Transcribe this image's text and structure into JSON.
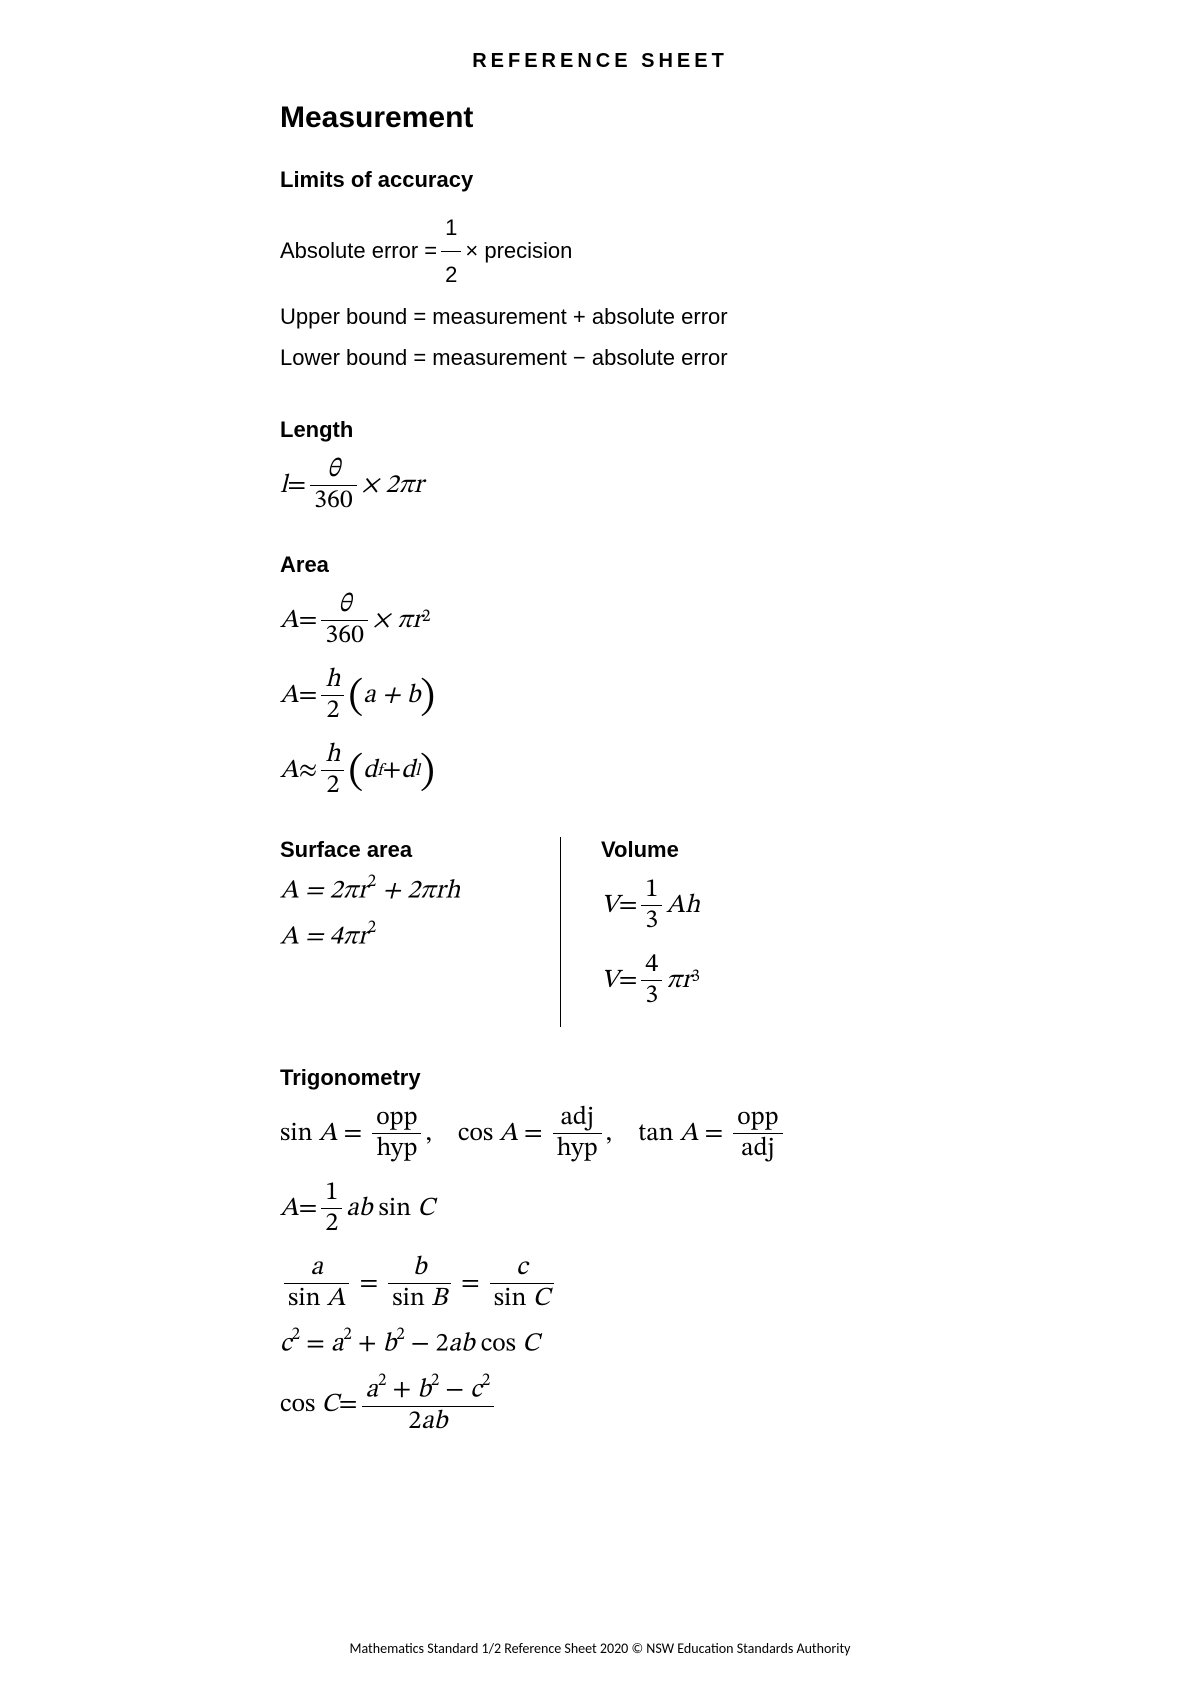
{
  "header": "REFERENCE  SHEET",
  "main_heading": "Measurement",
  "limits": {
    "heading": "Limits of accuracy",
    "line1_prefix": "Absolute error = ",
    "line1_frac_num": "1",
    "line1_frac_den": "2",
    "line1_suffix": " × precision",
    "line2": "Upper bound = measurement + absolute error",
    "line3": "Lower bound = measurement − absolute error"
  },
  "length": {
    "heading": "Length",
    "lhs": "l",
    "eq": " = ",
    "frac_num": "θ",
    "frac_den": "360",
    "suffix": " × 2πr"
  },
  "area": {
    "heading": "Area",
    "f1": {
      "lhs": "A",
      "eq": " = ",
      "num": "θ",
      "den": "360",
      "suffix_pre": " × π",
      "suffix_var": "r",
      "suffix_exp": "2"
    },
    "f2": {
      "lhs": "A",
      "eq": " = ",
      "num": "h",
      "den": "2",
      "paren_content": "a + b"
    },
    "f3": {
      "lhs": "A",
      "eq": " ≈ ",
      "num": "h",
      "den": "2",
      "d1": "d",
      "d1s": "f",
      "plus": " + ",
      "d2": "d",
      "d2s": "l"
    }
  },
  "surface": {
    "heading": "Surface area",
    "f1": "A = 2πr² + 2πrh",
    "f1_lhs": "A",
    "f1_eq": " = 2π",
    "f1_r": "r",
    "f1_e": "2",
    "f1_mid": " + 2π",
    "f1_rh": "rh",
    "f2_lhs": "A",
    "f2_eq": " = 4π",
    "f2_r": "r",
    "f2_e": "2"
  },
  "volume": {
    "heading": "Volume",
    "f1": {
      "lhs": "V",
      "eq": " = ",
      "num": "1",
      "den": "3",
      "suffix": "Ah"
    },
    "f2": {
      "lhs": "V",
      "eq": " = ",
      "num": "4",
      "den": "3",
      "pi": "π",
      "r": "r",
      "exp": "3"
    }
  },
  "trig": {
    "heading": "Trigonometry",
    "sin": {
      "fn": "sin",
      "var": "A",
      "num": "opp",
      "den": "hyp"
    },
    "cos": {
      "fn": "cos",
      "var": "A",
      "num": "adj",
      "den": "hyp"
    },
    "tan": {
      "fn": "tan",
      "var": "A",
      "num": "opp",
      "den": "adj"
    },
    "area": {
      "lhs": "A",
      "eq": " = ",
      "num": "1",
      "den": "2",
      "mid": "ab",
      "fn": "sin",
      "var": "C"
    },
    "sine_rule": {
      "a": "a",
      "sa": "sin",
      "va": "A",
      "b": "b",
      "sb": "sin",
      "vb": "B",
      "c": "c",
      "sc": "sin",
      "vc": "C"
    },
    "cos_rule1": {
      "c": "c",
      "e": "2",
      "eq": " = ",
      "a": "a",
      "ae": "2",
      "p": " + ",
      "b": "b",
      "be": "2",
      "m": " − 2",
      "ab": "ab",
      "fn": "cos",
      "var": "C"
    },
    "cos_rule2": {
      "fn": "cos",
      "var": "C",
      "eq": " = ",
      "a": "a",
      "ae": "2",
      "p": " + ",
      "b": "b",
      "be": "2",
      "m": " − ",
      "c": "c",
      "ce": "2",
      "den_two": "2",
      "den_ab": "ab"
    }
  },
  "footer": "Mathematics Standard 1/2 Reference Sheet 2020 © NSW Education Standards Authority"
}
